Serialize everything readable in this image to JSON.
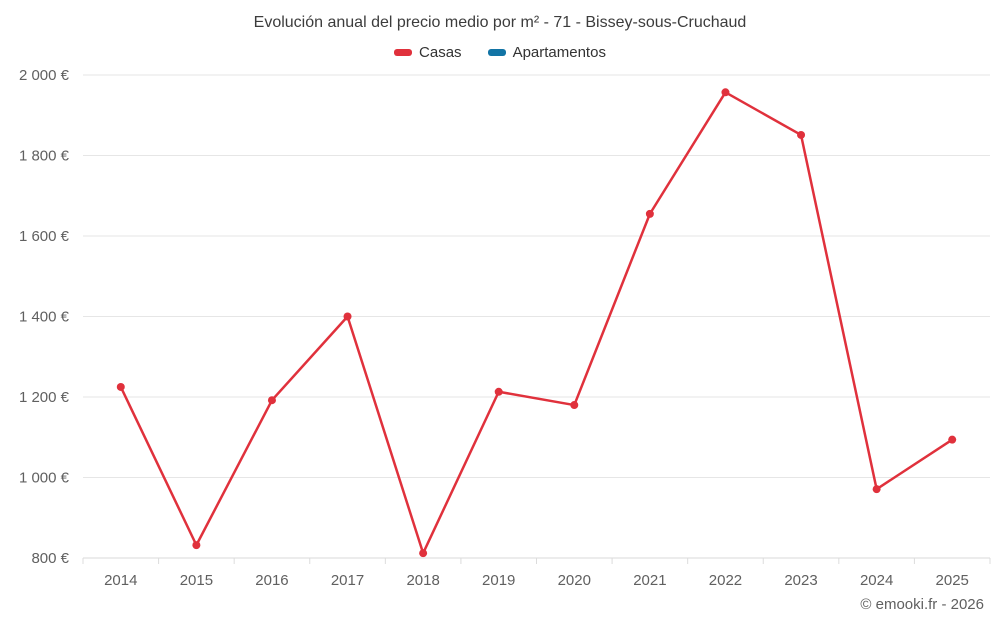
{
  "chart_data": {
    "type": "line",
    "title": "Evolución anual del precio medio por m² - 71 - Bissey-sous-Cruchaud",
    "categories": [
      "2014",
      "2015",
      "2016",
      "2017",
      "2018",
      "2019",
      "2020",
      "2021",
      "2022",
      "2023",
      "2024",
      "2025"
    ],
    "series": [
      {
        "name": "Casas",
        "color": "#e0313c",
        "values": [
          1225,
          832,
          1192,
          1400,
          812,
          1213,
          1180,
          1655,
          1957,
          1851,
          971,
          1094
        ]
      },
      {
        "name": "Apartamentos",
        "color": "#1274a5",
        "values": []
      }
    ],
    "ylim": [
      800,
      2000
    ],
    "ytick_step": 200,
    "yaxis_format": "{value} €",
    "xlabel": "",
    "ylabel": "",
    "grid": "horizontal",
    "legend_position": "top"
  },
  "footer": {
    "credit": "© emooki.fr - 2026"
  }
}
